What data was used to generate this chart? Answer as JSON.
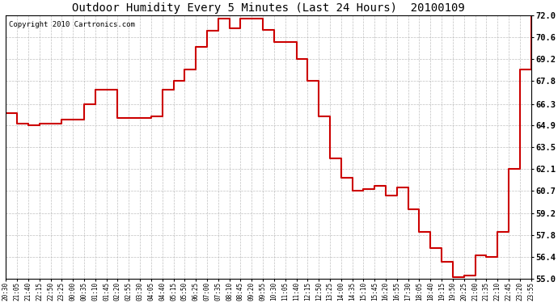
{
  "title": "Outdoor Humidity Every 5 Minutes (Last 24 Hours)  20100109",
  "copyright": "Copyright 2010 Cartronics.com",
  "line_color": "#cc0000",
  "bg_color": "#ffffff",
  "plot_bg_color": "#ffffff",
  "grid_color": "#b0b0b0",
  "ylim": [
    55.0,
    72.0
  ],
  "yticks": [
    55.0,
    56.4,
    57.8,
    59.2,
    60.7,
    62.1,
    63.5,
    64.9,
    66.3,
    67.8,
    69.2,
    70.6,
    72.0
  ],
  "x_labels": [
    "20:30",
    "21:05",
    "21:40",
    "22:15",
    "22:50",
    "23:25",
    "00:00",
    "00:35",
    "01:10",
    "01:45",
    "02:20",
    "02:55",
    "03:30",
    "04:05",
    "04:40",
    "05:15",
    "05:50",
    "06:25",
    "07:00",
    "07:35",
    "08:10",
    "08:45",
    "09:20",
    "09:55",
    "10:30",
    "11:05",
    "11:40",
    "12:15",
    "12:50",
    "13:25",
    "14:00",
    "14:35",
    "15:10",
    "15:45",
    "16:20",
    "16:55",
    "17:30",
    "18:05",
    "18:40",
    "19:15",
    "19:50",
    "20:25",
    "21:00",
    "21:35",
    "22:10",
    "22:45",
    "23:20",
    "23:55"
  ],
  "humidity": [
    65.7,
    65.0,
    64.9,
    65.0,
    65.0,
    65.3,
    65.3,
    66.3,
    67.2,
    67.2,
    65.4,
    65.4,
    65.4,
    65.5,
    67.2,
    67.8,
    68.5,
    70.0,
    71.0,
    71.8,
    71.2,
    71.8,
    71.8,
    71.1,
    70.3,
    70.3,
    69.2,
    67.8,
    65.5,
    62.8,
    61.5,
    60.7,
    60.8,
    61.0,
    60.4,
    60.9,
    59.5,
    58.0,
    57.0,
    56.1,
    55.1,
    55.2,
    56.5,
    56.4,
    58.0,
    62.1,
    68.5,
    72.0
  ]
}
